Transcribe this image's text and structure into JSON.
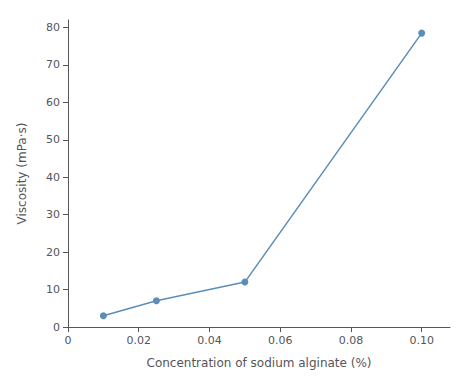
{
  "chart_data": {
    "type": "line",
    "x": [
      0.01,
      0.025,
      0.05,
      0.1
    ],
    "values": [
      3.0,
      7.0,
      12.0,
      78.5
    ],
    "xlabel": "Concentration of sodium alginate (%)",
    "ylabel": "Viscosity (mPa·s)",
    "xlim": [
      0,
      0.108
    ],
    "ylim": [
      0,
      82
    ],
    "xticks": [
      0,
      0.02,
      0.04,
      0.06,
      0.08,
      {
        "value": 0.1,
        "label": "0.10"
      }
    ],
    "yticks": [
      0,
      10,
      20,
      30,
      40,
      50,
      60,
      70,
      80
    ],
    "color": "#5b8db8",
    "marker": "circle",
    "grid": false
  }
}
